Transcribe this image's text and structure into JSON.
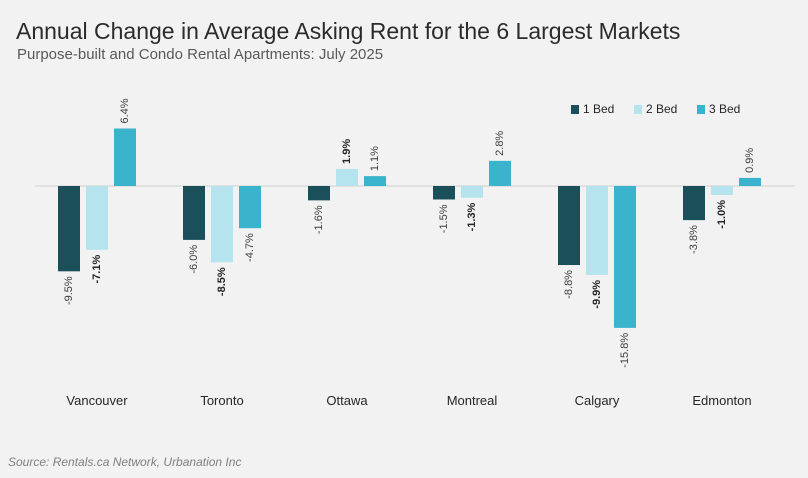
{
  "chart_data": {
    "type": "bar",
    "title": "Annual Change in Average Asking Rent for the 6 Largest Markets",
    "subtitle": "Purpose-built and Condo Rental Apartments: July 2025",
    "categories": [
      "Vancouver",
      "Toronto",
      "Ottawa",
      "Montreal",
      "Calgary",
      "Edmonton"
    ],
    "series": [
      {
        "name": "1 Bed",
        "color": "#1b4f5a",
        "values": [
          -9.5,
          -6.0,
          -1.6,
          -1.5,
          -8.8,
          -3.8
        ],
        "labels": [
          "-9.5%",
          "-6.0%",
          "-1.6%",
          "-1.5%",
          "-8.8%",
          "-3.8%"
        ],
        "bold": false
      },
      {
        "name": "2 Bed",
        "color": "#b5e3ee",
        "values": [
          -7.1,
          -8.5,
          1.9,
          -1.3,
          -9.9,
          -1.0
        ],
        "labels": [
          "-7.1%",
          "-8.5%",
          "1.9%",
          "-1.3%",
          "-9.9%",
          "-1.0%"
        ],
        "bold": true
      },
      {
        "name": "3 Bed",
        "color": "#3ab3cc",
        "values": [
          6.4,
          -4.7,
          1.1,
          2.8,
          -15.8,
          0.9
        ],
        "labels": [
          "6.4%",
          "-4.7%",
          "1.1%",
          "2.8%",
          "-15.8%",
          "0.9%"
        ],
        "bold": false
      }
    ],
    "ylim": [
      -16,
      7
    ],
    "grid": false,
    "legend_position": "top-right",
    "source": "Source: Rentals.ca Network, Urbanation Inc"
  }
}
